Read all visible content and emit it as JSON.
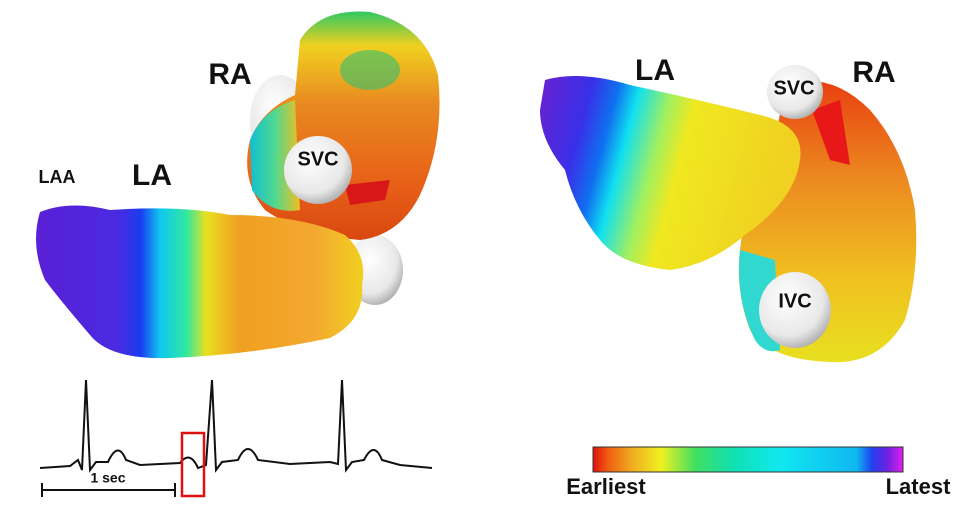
{
  "left_view": {
    "ra": "RA",
    "svc": "SVC",
    "laa": "LAA",
    "la": "LA"
  },
  "right_view": {
    "la": "LA",
    "svc": "SVC",
    "ra": "RA",
    "ivc": "IVC"
  },
  "ecg": {
    "scale_label": "1 sec"
  },
  "color_scale": {
    "min_label": "Earliest",
    "max_label": "Latest"
  }
}
